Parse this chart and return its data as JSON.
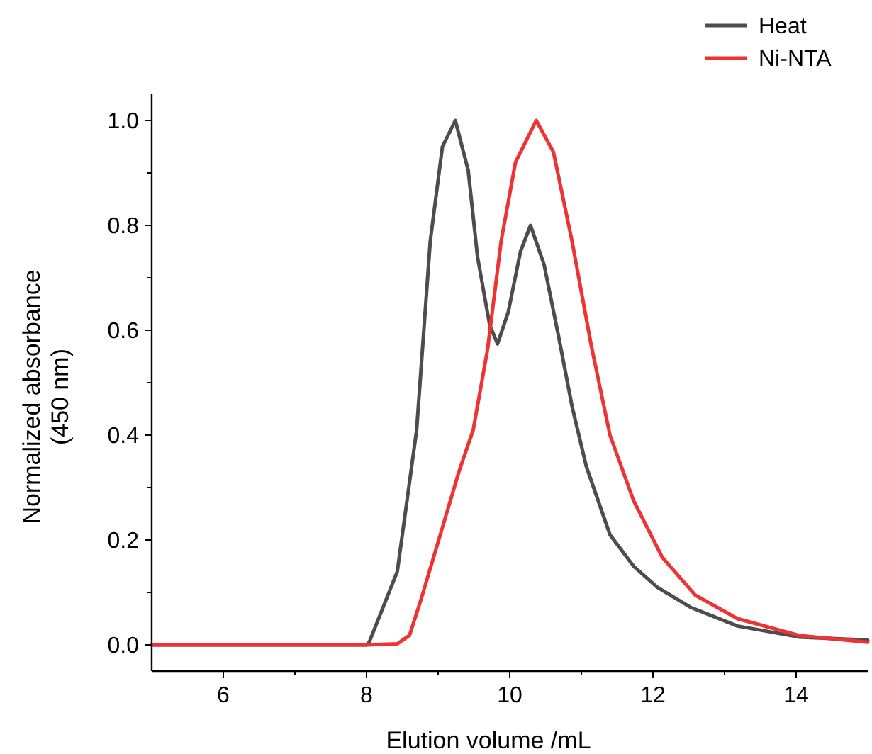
{
  "chart_data": {
    "type": "line",
    "xlabel": "Elution volume /mL",
    "ylabel": "Normalized absorbance\n(450 nm)",
    "xlim": [
      5,
      15
    ],
    "ylim": [
      -0.05,
      1.05
    ],
    "xticks": [
      6,
      {
        "value": 7,
        "label": null
      },
      8,
      {
        "value": 9,
        "label": null
      },
      10,
      {
        "value": 11,
        "label": null
      },
      12,
      {
        "value": 13,
        "label": null
      },
      14
    ],
    "yticks": [
      "0.0",
      {
        "value": 0.1,
        "label": null
      },
      {
        "value": 0.2,
        "label": "0.2"
      },
      {
        "value": 0.3,
        "label": null
      },
      {
        "value": 0.4,
        "label": "0.4"
      },
      {
        "value": 0.5,
        "label": null
      },
      {
        "value": 0.6,
        "label": "0.6"
      },
      {
        "value": 0.7,
        "label": null
      },
      {
        "value": 0.8,
        "label": "0.8"
      },
      {
        "value": 0.9,
        "label": null
      },
      {
        "value": 1,
        "label": "1.0"
      }
    ],
    "legend": "top right",
    "grid": false,
    "marker": "none",
    "line_style": "solid",
    "series": [
      {
        "name": "Heat",
        "color": "#4d4d4d",
        "x": [
          5,
          8.0,
          8.04,
          8.43,
          8.7,
          8.89,
          9.06,
          9.24,
          9.42,
          9.55,
          9.72,
          9.83,
          9.98,
          10.15,
          10.29,
          10.48,
          10.68,
          10.87,
          11.07,
          11.4,
          11.73,
          12.06,
          12.52,
          13.18,
          14.04,
          15
        ],
        "values": [
          0,
          0,
          0.006,
          0.14,
          0.41,
          0.77,
          0.95,
          1.0,
          0.905,
          0.74,
          0.61,
          0.574,
          0.635,
          0.75,
          0.8,
          0.725,
          0.59,
          0.455,
          0.34,
          0.21,
          0.15,
          0.11,
          0.072,
          0.036,
          0.015,
          0.009
        ]
      },
      {
        "name": "Ni-NTA",
        "color": "#ee3333",
        "x": [
          5,
          8.0,
          8.43,
          8.6,
          8.76,
          9.03,
          9.29,
          9.49,
          9.69,
          9.88,
          10.08,
          10.37,
          10.61,
          10.87,
          11.14,
          11.4,
          11.73,
          12.13,
          12.59,
          13.18,
          14.04,
          15
        ],
        "values": [
          0,
          0,
          0.002,
          0.018,
          0.086,
          0.21,
          0.33,
          0.41,
          0.563,
          0.77,
          0.92,
          1.0,
          0.94,
          0.77,
          0.57,
          0.4,
          0.275,
          0.167,
          0.095,
          0.05,
          0.018,
          0.005
        ]
      }
    ]
  }
}
